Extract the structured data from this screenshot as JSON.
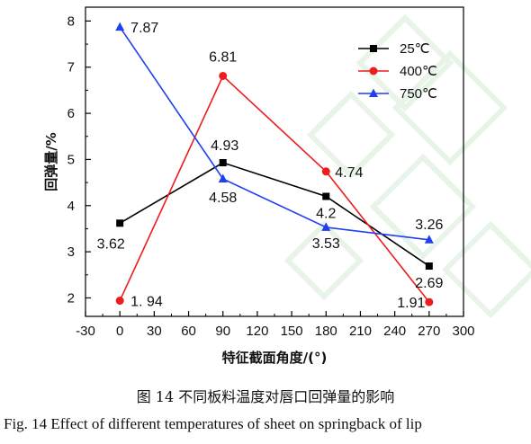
{
  "caption": {
    "chinese": "图 14   不同板料温度对唇口回弹量的影响",
    "english": "Fig. 14   Effect of different temperatures of sheet on springback of lip"
  },
  "chart_data": {
    "type": "line",
    "title": "",
    "xlabel": "特征截面角度/(°)",
    "ylabel": "回弹量/%",
    "x": [
      0,
      90,
      180,
      270
    ],
    "xlim": [
      -30,
      300
    ],
    "ylim": [
      1.6,
      8.3
    ],
    "xticks": [
      "-30",
      "0",
      "30",
      "60",
      "90",
      "120",
      "150",
      "180",
      "210",
      "240",
      "270",
      "300"
    ],
    "yticks": [
      "2",
      "3",
      "4",
      "5",
      "6",
      "7",
      "8"
    ],
    "legend_position": "top-right",
    "grid": false,
    "series": [
      {
        "name": "25℃",
        "color": "#000000",
        "marker": "square",
        "values": [
          3.62,
          4.93,
          4.2,
          2.69
        ],
        "labels": [
          "3.62",
          "4.93",
          "4.2",
          "2.69"
        ]
      },
      {
        "name": "400℃",
        "color": "#ee1c1c",
        "marker": "circle",
        "values": [
          1.94,
          6.81,
          4.74,
          1.91
        ],
        "labels": [
          "1. 94",
          "6.81",
          "4.74",
          "1.91"
        ]
      },
      {
        "name": "750℃",
        "color": "#1f3ff0",
        "marker": "triangle",
        "values": [
          7.87,
          4.58,
          3.53,
          3.26
        ],
        "labels": [
          "7.87",
          "4.58",
          "3.53",
          "3.26"
        ]
      }
    ]
  }
}
